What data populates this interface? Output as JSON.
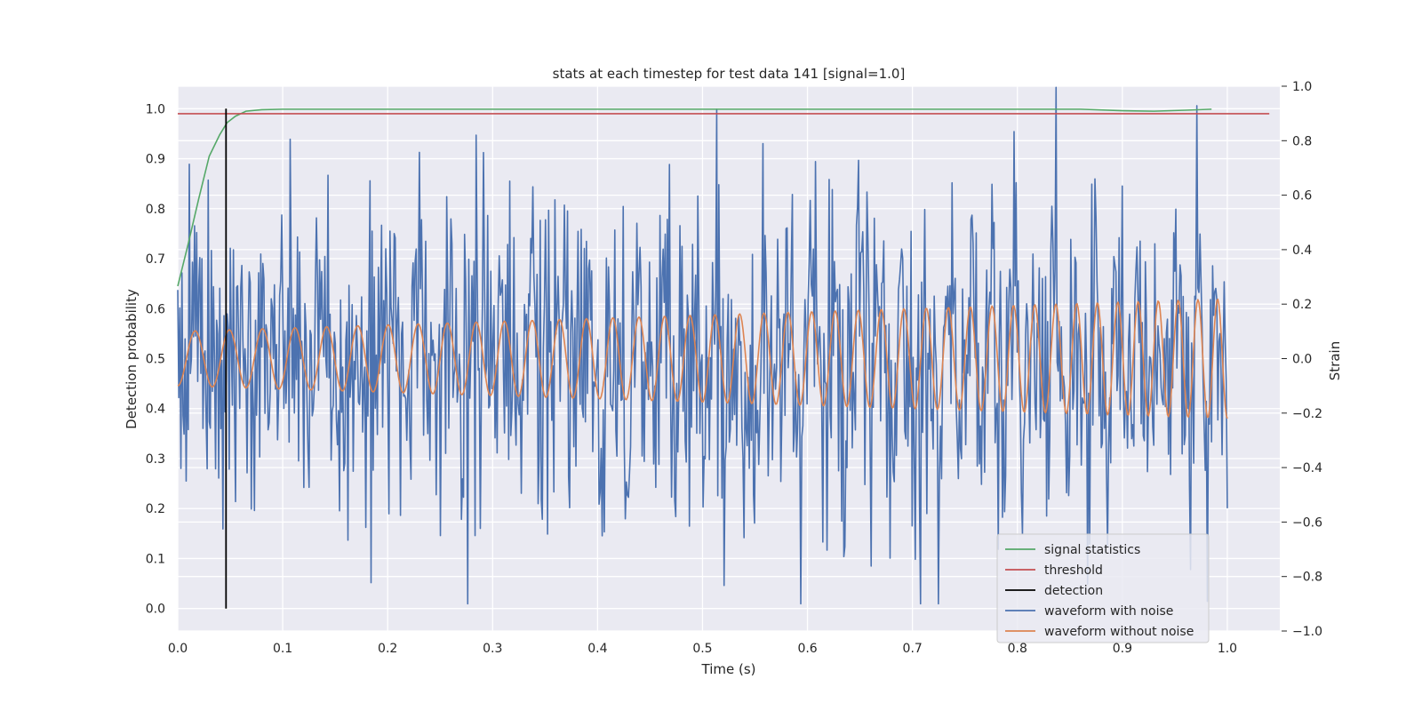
{
  "chart_data": {
    "type": "line",
    "title": "stats at each timestep for test data 141 [signal=1.0]",
    "xlabel": "Time (s)",
    "ylabel": "Detection probability",
    "y2label": "Strain",
    "xlim": [
      0.0,
      1.05
    ],
    "ylim": [
      -0.045,
      1.045
    ],
    "y2lim": [
      -1.0,
      1.0
    ],
    "xticks": [
      "0.0",
      "0.1",
      "0.2",
      "0.3",
      "0.4",
      "0.5",
      "0.6",
      "0.7",
      "0.8",
      "0.9",
      "1.0"
    ],
    "yticks": [
      "0.0",
      "0.1",
      "0.2",
      "0.3",
      "0.4",
      "0.5",
      "0.6",
      "0.7",
      "0.8",
      "0.9",
      "1.0"
    ],
    "y2ticks": [
      "−1.0",
      "−0.8",
      "−0.6",
      "−0.4",
      "−0.2",
      "0.0",
      "0.2",
      "0.4",
      "0.6",
      "0.8",
      "1.0"
    ],
    "grid": true,
    "legend_position": "lower-right",
    "colors": {
      "signal_statistics": "#55a868",
      "threshold": "#c44e52",
      "detection": "#000000",
      "waveform_noise": "#4c72b0",
      "waveform_clean": "#dd8452",
      "background": "#eaeaf2"
    },
    "series": [
      {
        "name": "signal statistics",
        "axis": "left",
        "x": [
          0.0,
          0.01,
          0.02,
          0.03,
          0.04,
          0.047,
          0.055,
          0.065,
          0.08,
          0.1,
          0.2,
          0.4,
          0.6,
          0.8,
          0.86,
          0.9,
          0.93,
          0.96,
          0.985
        ],
        "y": [
          0.645,
          0.73,
          0.82,
          0.905,
          0.948,
          0.972,
          0.985,
          0.995,
          0.998,
          0.999,
          0.999,
          0.999,
          0.999,
          0.999,
          0.999,
          0.996,
          0.995,
          0.997,
          0.999
        ]
      },
      {
        "name": "threshold",
        "axis": "left",
        "x": [
          0.0,
          1.04
        ],
        "y": [
          0.99,
          0.99
        ]
      },
      {
        "name": "detection",
        "axis": "left",
        "x": [
          0.046,
          0.046
        ],
        "y": [
          0.0,
          1.0
        ]
      },
      {
        "name": "waveform with noise",
        "axis": "right",
        "generator": "gaussian_noise_plus_chirp",
        "samples": 1000,
        "x_range": [
          0.0,
          1.0
        ],
        "y_range": [
          -0.9,
          1.0
        ],
        "noise_std": 0.3
      },
      {
        "name": "waveform without noise",
        "axis": "right",
        "generator": "chirp",
        "samples": 1000,
        "x_range": [
          0.0,
          1.0
        ],
        "freq_start_hz": 30,
        "freq_end_hz": 54,
        "amp_start": 0.1,
        "amp_end": 0.22
      }
    ]
  }
}
